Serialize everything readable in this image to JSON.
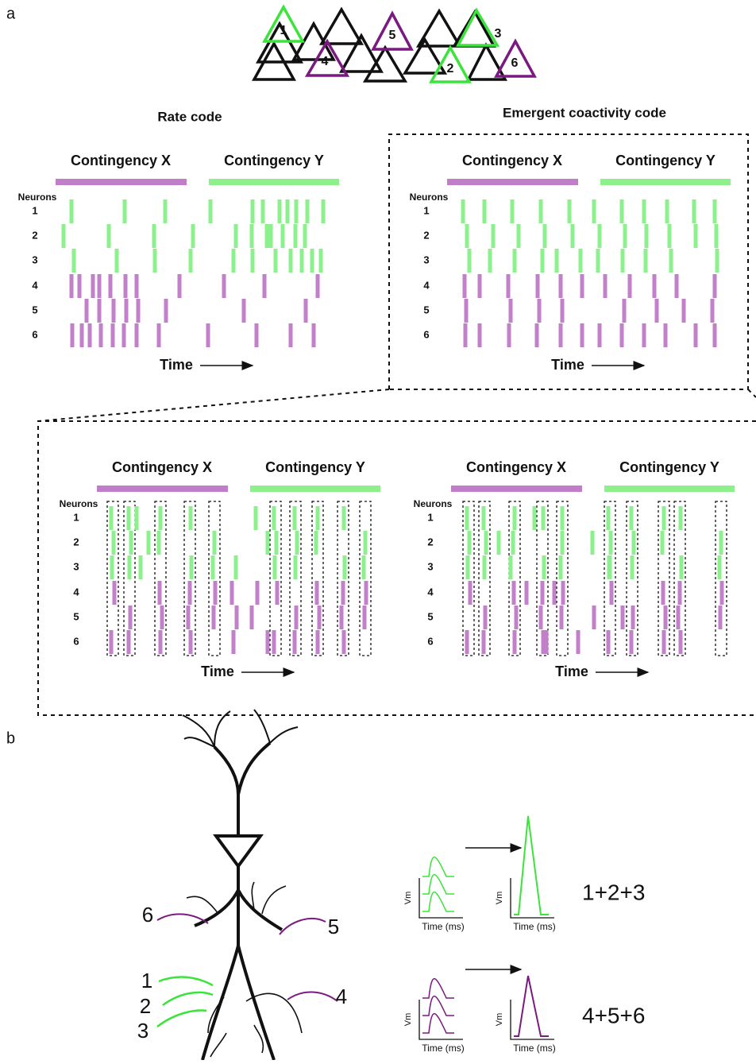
{
  "panel_labels": [
    "a",
    "b"
  ],
  "triangle_labels": [
    "1",
    "2",
    "3",
    "4",
    "5",
    "6"
  ],
  "rasters": [
    {
      "title": "Rate code",
      "contingencies": [
        "Contingency X",
        "Contingency Y"
      ],
      "neurons_label": "Neurons",
      "neurons": [
        "1",
        "2",
        "3",
        "4",
        "5",
        "6"
      ],
      "time_label": "Time"
    },
    {
      "title": "Emergent coactivity code",
      "contingencies": [
        "Contingency X",
        "Contingency Y"
      ],
      "neurons_label": "Neurons",
      "neurons": [
        "1",
        "2",
        "3",
        "4",
        "5",
        "6"
      ],
      "time_label": "Time"
    },
    {
      "contingencies": [
        "Contingency X",
        "Contingency Y"
      ],
      "neurons_label": "Neurons",
      "neurons": [
        "1",
        "2",
        "3",
        "4",
        "5",
        "6"
      ],
      "time_label": "Time"
    },
    {
      "contingencies": [
        "Contingency X",
        "Contingency Y"
      ],
      "neurons_label": "Neurons",
      "neurons": [
        "1",
        "2",
        "3",
        "4",
        "5",
        "6"
      ],
      "time_label": "Time"
    }
  ],
  "inputs": [
    "1",
    "2",
    "3",
    "4",
    "5",
    "6"
  ],
  "plots": [
    {
      "y_label": "Vm",
      "x_label": "Time (ms)"
    },
    {
      "y_label": "Vm",
      "x_label": "Time (ms)"
    },
    {
      "y_label": "Vm",
      "x_label": "Time (ms)"
    },
    {
      "y_label": "Vm",
      "x_label": "Time (ms)"
    }
  ],
  "sums": [
    "1+2+3",
    "4+5+6"
  ]
}
